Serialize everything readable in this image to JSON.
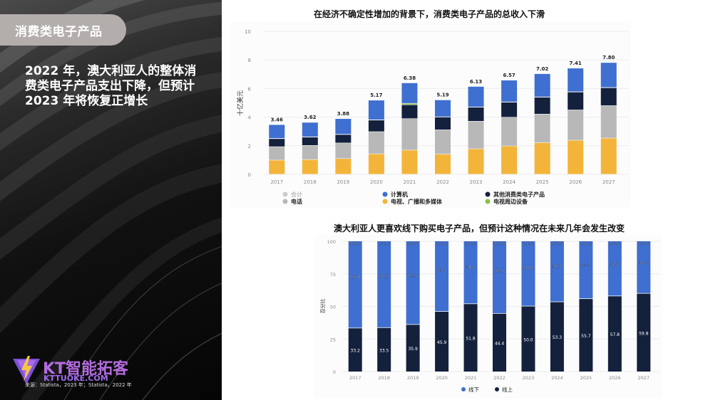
{
  "left": {
    "tag": "消费类电子产品",
    "headline": "2022 年，澳大利亚人的整体消费类电子产品支出下降，但预计 2023 年将恢复正增长",
    "logo_text": "KT智能拓客",
    "logo_url": "KTTUOKE.COM",
    "source": "来源：Statista，2023 年；Statista，2022 年"
  },
  "colors": {
    "computer": "#3f6fd1",
    "other": "#14213d",
    "phone": "#b8b8b8",
    "tv": "#f3b43a",
    "peripheral": "#8bbf4a",
    "total": "#cccccc",
    "offline": "#3f6fd1",
    "online": "#14213d"
  },
  "chart_data": [
    {
      "type": "bar",
      "stacked": true,
      "title": "在经济不确定性增加的背景下，消费类电子产品的总收入下滑",
      "xlabel": "",
      "ylabel": "十亿美元",
      "ylim": [
        0,
        10
      ],
      "yticks": [
        0,
        2,
        4,
        6,
        8,
        10
      ],
      "grid": true,
      "legend_position": "bottom",
      "categories": [
        "2017",
        "2018",
        "2019",
        "2020",
        "2021",
        "2022",
        "2023",
        "2024",
        "2025",
        "2026",
        "2027"
      ],
      "series": [
        {
          "name": "电视、广播和多媒体",
          "key": "tv",
          "values": [
            0.98,
            1.02,
            1.09,
            1.42,
            1.68,
            1.4,
            1.77,
            1.97,
            2.2,
            2.37,
            2.52
          ]
        },
        {
          "name": "电话",
          "key": "phone",
          "values": [
            0.94,
            0.99,
            1.09,
            1.55,
            2.2,
            1.7,
            1.93,
            2.01,
            2.0,
            2.12,
            2.27
          ]
        },
        {
          "name": "其他消费类电子产品",
          "key": "other",
          "values": [
            0.56,
            0.58,
            0.59,
            0.81,
            0.97,
            0.89,
            0.98,
            1.05,
            1.18,
            1.25,
            1.25
          ]
        },
        {
          "name": "电视周边设备",
          "key": "peripheral",
          "values": [
            0.02,
            0.02,
            0.02,
            0.02,
            0.1,
            0.02,
            0.02,
            0.02,
            0.02,
            0.02,
            0.02
          ]
        },
        {
          "name": "计算机",
          "key": "computer",
          "values": [
            0.96,
            1.01,
            1.09,
            1.37,
            1.43,
            1.18,
            1.43,
            1.52,
            1.62,
            1.65,
            1.74
          ]
        }
      ],
      "totals": [
        3.46,
        3.62,
        3.88,
        5.17,
        6.38,
        5.19,
        6.13,
        6.57,
        7.02,
        7.41,
        7.8
      ],
      "total_labels": [
        "3.46",
        "3.62",
        "3.88",
        "5.17",
        "6.38",
        "5.19",
        "6.13",
        "6.57",
        "7.02",
        "7.41",
        "7.80"
      ],
      "legend": [
        {
          "name": "合计",
          "key": "total",
          "muted": true
        },
        {
          "name": "电话",
          "key": "phone"
        },
        {
          "name": "计算机",
          "key": "computer"
        },
        {
          "name": "电视、广播和多媒体",
          "key": "tv"
        },
        {
          "name": "其他消费类电子产品",
          "key": "other"
        },
        {
          "name": "电视周边设备",
          "key": "peripheral"
        }
      ]
    },
    {
      "type": "bar",
      "stacked": true,
      "title": "澳大利亚人更喜欢线下购买电子产品，但预计这种情况在未来几年会发生改变",
      "xlabel": "",
      "ylabel": "百分比",
      "ylim": [
        0,
        100
      ],
      "yticks": [
        0,
        25,
        50,
        75,
        100
      ],
      "grid": true,
      "legend_position": "bottom",
      "categories": [
        "2017",
        "2018",
        "2019",
        "2020",
        "2021",
        "2022",
        "2023",
        "2024",
        "2025",
        "2026",
        "2027"
      ],
      "series": [
        {
          "name": "线上",
          "key": "online",
          "values": [
            33.2,
            33.5,
            35.9,
            45.9,
            51.8,
            44.4,
            50.0,
            53.3,
            55.7,
            57.8,
            59.8
          ]
        },
        {
          "name": "线下",
          "key": "offline",
          "values": [
            66.8,
            66.5,
            64.1,
            54.1,
            48.2,
            55.6,
            50.0,
            46.7,
            44.3,
            42.2,
            40.2
          ]
        }
      ],
      "online_labels": [
        "33.2",
        "33.5",
        "35.9",
        "45.9",
        "51.8",
        "44.4",
        "50.0",
        "53.3",
        "55.7",
        "57.8",
        "59.8"
      ],
      "offline_labels": [
        "66.8",
        "66.5",
        "64.1",
        "54.1",
        "48.2",
        "55.6",
        "50.0",
        "46.7",
        "44.3",
        "42.2",
        "40.2"
      ],
      "total_labels": [
        "100.0",
        "100.0",
        "100.0",
        "100.0",
        "100.0",
        "100.0",
        "100.0",
        "100.0",
        "100.0",
        "100.0",
        "100.0"
      ],
      "legend": [
        {
          "name": "线下",
          "key": "offline"
        },
        {
          "name": "线上",
          "key": "online"
        }
      ]
    }
  ]
}
